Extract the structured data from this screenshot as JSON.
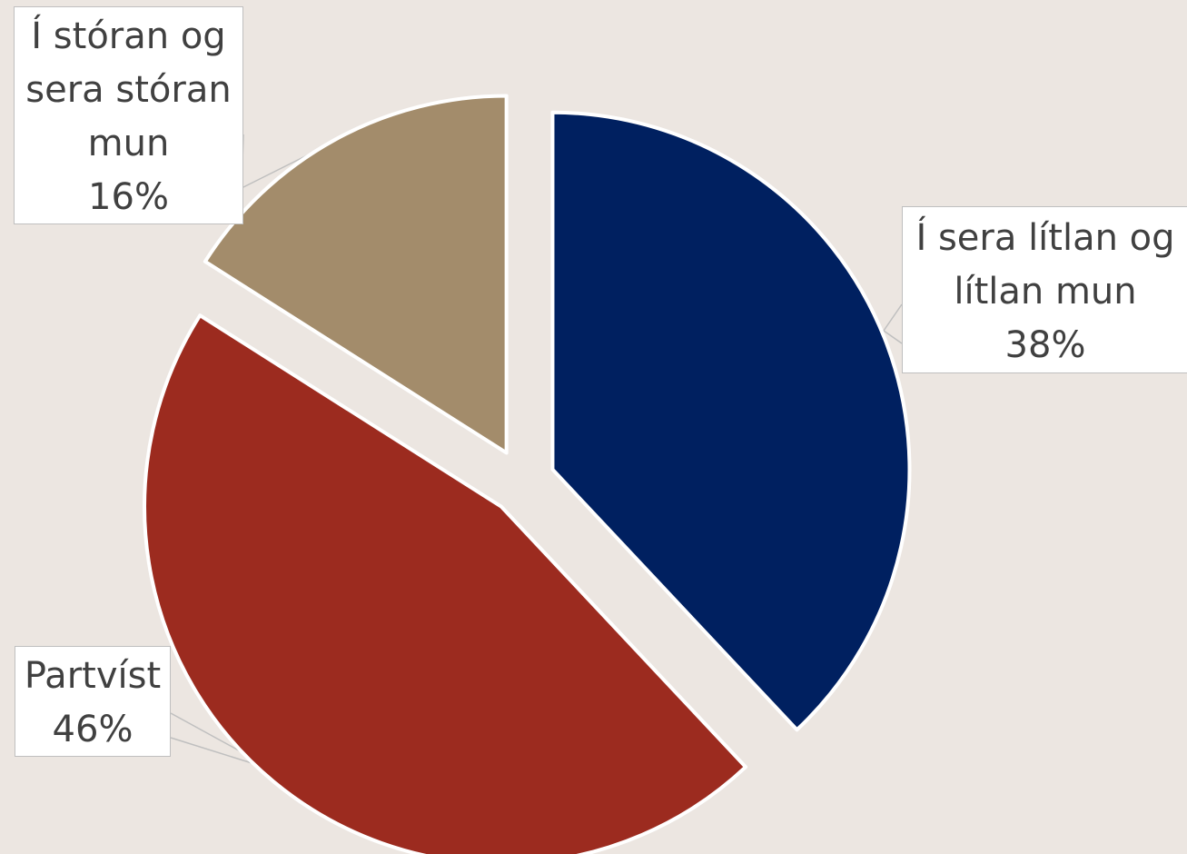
{
  "chart_data": {
    "type": "pie",
    "slices": [
      {
        "label_lines": [
          "Í sera lítlan og",
          "lítlan mun"
        ],
        "percent_label": "38%",
        "value": 38,
        "color": "#002060"
      },
      {
        "label_lines": [
          "Partvíst"
        ],
        "percent_label": "46%",
        "value": 46,
        "color": "#9C2B1F"
      },
      {
        "label_lines": [
          "Í stóran og",
          "sera stóran",
          "mun"
        ],
        "percent_label": "16%",
        "value": 16,
        "color": "#A38C6B"
      }
    ],
    "exploded": true,
    "start_angle": "12 o'clock",
    "direction": "clockwise",
    "legend": "none",
    "data_labels": "callouts with category name and percentage"
  }
}
